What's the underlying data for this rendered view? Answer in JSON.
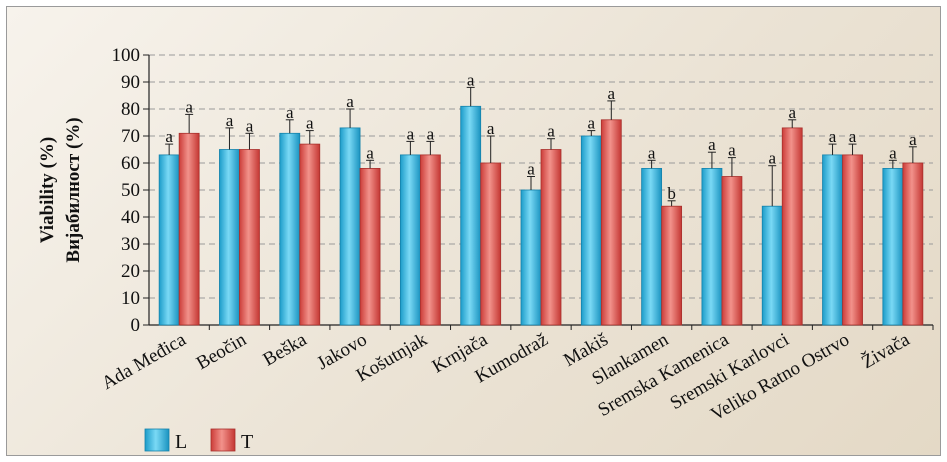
{
  "chart_data": {
    "type": "bar",
    "ylabel_lines": [
      "Viability (%)",
      "Вијабилност (%)"
    ],
    "ylim": [
      0,
      100
    ],
    "yticks": [
      0,
      10,
      20,
      30,
      40,
      50,
      60,
      70,
      80,
      90,
      100
    ],
    "grid": true,
    "legend_placement": "bottom-left",
    "categories": [
      "Ada Međica",
      "Beočin",
      "Beška",
      "Jakovo",
      "Košutnjak",
      "Krnjača",
      "Kumodraž",
      "Makiš",
      "Slankamen",
      "Sremska Kamenica",
      "Sremski Karlovci",
      "Veliko Ratno Ostrvo",
      "Živača"
    ],
    "series": [
      {
        "name": "L",
        "color": "#2bb5e0",
        "values": [
          63,
          65,
          71,
          73,
          63,
          81,
          50,
          70,
          58,
          58,
          44,
          63,
          58
        ],
        "errors": [
          4,
          8,
          5,
          7,
          5,
          7,
          5,
          2,
          3,
          6,
          15,
          4,
          3
        ],
        "labels": [
          "a",
          "a",
          "a",
          "a",
          "a",
          "a",
          "a",
          "a",
          "a",
          "a",
          "a",
          "a",
          "a"
        ]
      },
      {
        "name": "T",
        "color": "#e0554f",
        "values": [
          71,
          65,
          67,
          58,
          63,
          60,
          65,
          76,
          44,
          55,
          73,
          63,
          60
        ],
        "errors": [
          7,
          6,
          5,
          3,
          5,
          10,
          4,
          7,
          2,
          7,
          3,
          4,
          6
        ],
        "labels": [
          "a",
          "a",
          "a",
          "a",
          "a",
          "a",
          "a",
          "a",
          "b",
          "a",
          "a",
          "a",
          "a"
        ]
      }
    ]
  }
}
